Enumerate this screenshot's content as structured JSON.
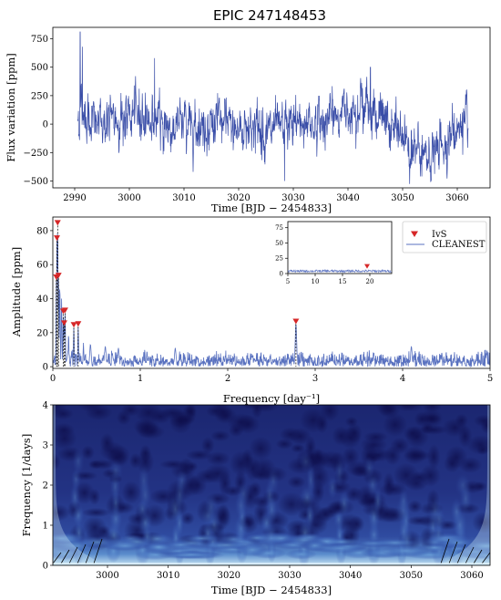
{
  "title": "EPIC 247148453",
  "chart_data": [
    {
      "type": "line",
      "xlabel": "Time [BJD − 2454833]",
      "ylabel": "Flux variation [ppm]",
      "xlim": [
        2986,
        3066
      ],
      "ylim": [
        -560,
        850
      ],
      "xticks": [
        2990,
        3000,
        3010,
        3020,
        3030,
        3040,
        3050,
        3060
      ],
      "yticks": [
        -500,
        -250,
        0,
        250,
        500,
        750
      ],
      "color": "#3a4ea8",
      "trend": {
        "x": [
          2990.5,
          2991.2,
          2992,
          2994,
          2996,
          2998,
          3000,
          3002,
          3004,
          3006,
          3008,
          3010,
          3012,
          3014,
          3016,
          3018,
          3020,
          3022,
          3024,
          3026,
          3028,
          3030,
          3032,
          3034,
          3036,
          3038,
          3040,
          3042,
          3044,
          3046,
          3048,
          3050,
          3052,
          3054,
          3056,
          3058,
          3060,
          3062
        ],
        "y": [
          20,
          150,
          80,
          0,
          20,
          40,
          60,
          100,
          40,
          0,
          -40,
          20,
          0,
          -20,
          20,
          0,
          -60,
          0,
          -40,
          -80,
          -40,
          0,
          20,
          0,
          40,
          80,
          130,
          180,
          150,
          50,
          -30,
          -100,
          -230,
          -300,
          -250,
          -150,
          -40,
          0
        ]
      },
      "spikes": [
        {
          "x": 2991.0,
          "y": 810
        },
        {
          "x": 2991.4,
          "y": 680
        },
        {
          "x": 3004.6,
          "y": 580
        },
        {
          "x": 3028.4,
          "y": -500
        },
        {
          "x": 3053.5,
          "y": -460
        },
        {
          "x": 3044.1,
          "y": 500
        }
      ]
    },
    {
      "type": "line",
      "xlabel": "Frequency [day⁻¹]",
      "ylabel": "Amplitude [ppm]",
      "xlim": [
        0,
        5
      ],
      "ylim": [
        -1,
        88
      ],
      "xticks": [
        0,
        1,
        2,
        3,
        4,
        5
      ],
      "yticks": [
        0,
        20,
        40,
        60,
        80
      ],
      "series": [
        {
          "name": "IvS",
          "color": "#d62728",
          "marker": "triangle-down",
          "points": [
            {
              "x": 0.04,
              "y": 51
            },
            {
              "x": 0.047,
              "y": 74
            },
            {
              "x": 0.055,
              "y": 83
            },
            {
              "x": 0.065,
              "y": 52
            },
            {
              "x": 0.12,
              "y": 31
            },
            {
              "x": 0.14,
              "y": 31.5
            },
            {
              "x": 0.13,
              "y": 24
            },
            {
              "x": 0.24,
              "y": 23
            },
            {
              "x": 0.29,
              "y": 23.5
            },
            {
              "x": 2.78,
              "y": 25
            }
          ]
        },
        {
          "name": "CLEANEST",
          "color": "#5a72c0",
          "peaks": [
            {
              "x": 0.04,
              "y": 51
            },
            {
              "x": 0.047,
              "y": 74
            },
            {
              "x": 0.055,
              "y": 83
            },
            {
              "x": 0.065,
              "y": 52
            },
            {
              "x": 0.08,
              "y": 48
            },
            {
              "x": 0.1,
              "y": 40
            },
            {
              "x": 0.12,
              "y": 31
            },
            {
              "x": 0.13,
              "y": 24
            },
            {
              "x": 0.14,
              "y": 31.5
            },
            {
              "x": 0.18,
              "y": 19
            },
            {
              "x": 0.24,
              "y": 23
            },
            {
              "x": 0.29,
              "y": 23.5
            },
            {
              "x": 0.35,
              "y": 14
            },
            {
              "x": 0.43,
              "y": 13
            },
            {
              "x": 0.6,
              "y": 12
            },
            {
              "x": 0.75,
              "y": 11
            },
            {
              "x": 1.4,
              "y": 11
            },
            {
              "x": 2.78,
              "y": 25
            },
            {
              "x": 4.1,
              "y": 12
            }
          ]
        }
      ],
      "legend": "top-right",
      "inset": {
        "xlim": [
          5,
          24
        ],
        "ylim": [
          0,
          85
        ],
        "xticks": [
          5,
          10,
          15,
          20
        ],
        "yticks": [
          0,
          25,
          50,
          75
        ],
        "marker": {
          "x": 19.5,
          "y": 8
        },
        "noise_level": 4
      }
    },
    {
      "type": "heatmap",
      "xlabel": "Time [BJD − 2454833]",
      "ylabel": "Frequency [1/days]",
      "xlim": [
        2991,
        3063
      ],
      "ylim": [
        0,
        4
      ],
      "xticks": [
        3000,
        3010,
        3020,
        3030,
        3040,
        3050,
        3060
      ],
      "yticks": [
        0,
        1,
        2,
        3,
        4
      ],
      "colormap": [
        "#0d0d4a",
        "#1b2670",
        "#2a3f96",
        "#3d64b8",
        "#6aa0d8",
        "#c8e6f4"
      ]
    }
  ]
}
